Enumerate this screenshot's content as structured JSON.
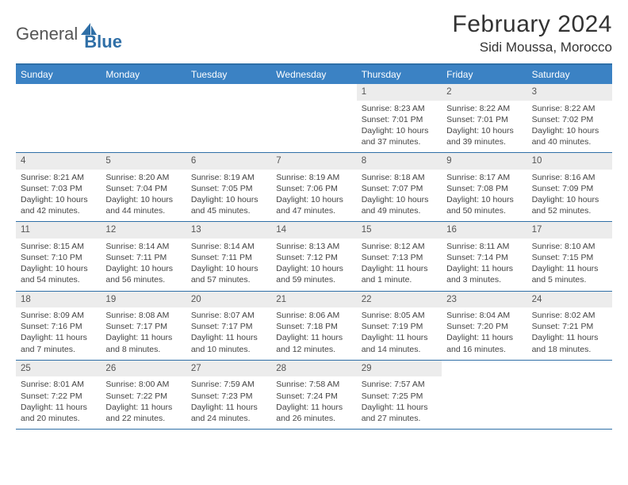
{
  "brand": {
    "general": "General",
    "blue": "Blue"
  },
  "colors": {
    "accent": "#3b82c4",
    "rule": "#2f6fa7",
    "dayrow_bg": "#ececec"
  },
  "title": {
    "month": "February 2024",
    "location": "Sidi Moussa, Morocco"
  },
  "weekdays": [
    "Sunday",
    "Monday",
    "Tuesday",
    "Wednesday",
    "Thursday",
    "Friday",
    "Saturday"
  ],
  "weeks": [
    [
      {
        "empty": true
      },
      {
        "empty": true
      },
      {
        "empty": true
      },
      {
        "empty": true
      },
      {
        "day": "1",
        "sunrise": "Sunrise: 8:23 AM",
        "sunset": "Sunset: 7:01 PM",
        "d1": "Daylight: 10 hours",
        "d2": "and 37 minutes."
      },
      {
        "day": "2",
        "sunrise": "Sunrise: 8:22 AM",
        "sunset": "Sunset: 7:01 PM",
        "d1": "Daylight: 10 hours",
        "d2": "and 39 minutes."
      },
      {
        "day": "3",
        "sunrise": "Sunrise: 8:22 AM",
        "sunset": "Sunset: 7:02 PM",
        "d1": "Daylight: 10 hours",
        "d2": "and 40 minutes."
      }
    ],
    [
      {
        "day": "4",
        "sunrise": "Sunrise: 8:21 AM",
        "sunset": "Sunset: 7:03 PM",
        "d1": "Daylight: 10 hours",
        "d2": "and 42 minutes."
      },
      {
        "day": "5",
        "sunrise": "Sunrise: 8:20 AM",
        "sunset": "Sunset: 7:04 PM",
        "d1": "Daylight: 10 hours",
        "d2": "and 44 minutes."
      },
      {
        "day": "6",
        "sunrise": "Sunrise: 8:19 AM",
        "sunset": "Sunset: 7:05 PM",
        "d1": "Daylight: 10 hours",
        "d2": "and 45 minutes."
      },
      {
        "day": "7",
        "sunrise": "Sunrise: 8:19 AM",
        "sunset": "Sunset: 7:06 PM",
        "d1": "Daylight: 10 hours",
        "d2": "and 47 minutes."
      },
      {
        "day": "8",
        "sunrise": "Sunrise: 8:18 AM",
        "sunset": "Sunset: 7:07 PM",
        "d1": "Daylight: 10 hours",
        "d2": "and 49 minutes."
      },
      {
        "day": "9",
        "sunrise": "Sunrise: 8:17 AM",
        "sunset": "Sunset: 7:08 PM",
        "d1": "Daylight: 10 hours",
        "d2": "and 50 minutes."
      },
      {
        "day": "10",
        "sunrise": "Sunrise: 8:16 AM",
        "sunset": "Sunset: 7:09 PM",
        "d1": "Daylight: 10 hours",
        "d2": "and 52 minutes."
      }
    ],
    [
      {
        "day": "11",
        "sunrise": "Sunrise: 8:15 AM",
        "sunset": "Sunset: 7:10 PM",
        "d1": "Daylight: 10 hours",
        "d2": "and 54 minutes."
      },
      {
        "day": "12",
        "sunrise": "Sunrise: 8:14 AM",
        "sunset": "Sunset: 7:11 PM",
        "d1": "Daylight: 10 hours",
        "d2": "and 56 minutes."
      },
      {
        "day": "13",
        "sunrise": "Sunrise: 8:14 AM",
        "sunset": "Sunset: 7:11 PM",
        "d1": "Daylight: 10 hours",
        "d2": "and 57 minutes."
      },
      {
        "day": "14",
        "sunrise": "Sunrise: 8:13 AM",
        "sunset": "Sunset: 7:12 PM",
        "d1": "Daylight: 10 hours",
        "d2": "and 59 minutes."
      },
      {
        "day": "15",
        "sunrise": "Sunrise: 8:12 AM",
        "sunset": "Sunset: 7:13 PM",
        "d1": "Daylight: 11 hours",
        "d2": "and 1 minute."
      },
      {
        "day": "16",
        "sunrise": "Sunrise: 8:11 AM",
        "sunset": "Sunset: 7:14 PM",
        "d1": "Daylight: 11 hours",
        "d2": "and 3 minutes."
      },
      {
        "day": "17",
        "sunrise": "Sunrise: 8:10 AM",
        "sunset": "Sunset: 7:15 PM",
        "d1": "Daylight: 11 hours",
        "d2": "and 5 minutes."
      }
    ],
    [
      {
        "day": "18",
        "sunrise": "Sunrise: 8:09 AM",
        "sunset": "Sunset: 7:16 PM",
        "d1": "Daylight: 11 hours",
        "d2": "and 7 minutes."
      },
      {
        "day": "19",
        "sunrise": "Sunrise: 8:08 AM",
        "sunset": "Sunset: 7:17 PM",
        "d1": "Daylight: 11 hours",
        "d2": "and 8 minutes."
      },
      {
        "day": "20",
        "sunrise": "Sunrise: 8:07 AM",
        "sunset": "Sunset: 7:17 PM",
        "d1": "Daylight: 11 hours",
        "d2": "and 10 minutes."
      },
      {
        "day": "21",
        "sunrise": "Sunrise: 8:06 AM",
        "sunset": "Sunset: 7:18 PM",
        "d1": "Daylight: 11 hours",
        "d2": "and 12 minutes."
      },
      {
        "day": "22",
        "sunrise": "Sunrise: 8:05 AM",
        "sunset": "Sunset: 7:19 PM",
        "d1": "Daylight: 11 hours",
        "d2": "and 14 minutes."
      },
      {
        "day": "23",
        "sunrise": "Sunrise: 8:04 AM",
        "sunset": "Sunset: 7:20 PM",
        "d1": "Daylight: 11 hours",
        "d2": "and 16 minutes."
      },
      {
        "day": "24",
        "sunrise": "Sunrise: 8:02 AM",
        "sunset": "Sunset: 7:21 PM",
        "d1": "Daylight: 11 hours",
        "d2": "and 18 minutes."
      }
    ],
    [
      {
        "day": "25",
        "sunrise": "Sunrise: 8:01 AM",
        "sunset": "Sunset: 7:22 PM",
        "d1": "Daylight: 11 hours",
        "d2": "and 20 minutes."
      },
      {
        "day": "26",
        "sunrise": "Sunrise: 8:00 AM",
        "sunset": "Sunset: 7:22 PM",
        "d1": "Daylight: 11 hours",
        "d2": "and 22 minutes."
      },
      {
        "day": "27",
        "sunrise": "Sunrise: 7:59 AM",
        "sunset": "Sunset: 7:23 PM",
        "d1": "Daylight: 11 hours",
        "d2": "and 24 minutes."
      },
      {
        "day": "28",
        "sunrise": "Sunrise: 7:58 AM",
        "sunset": "Sunset: 7:24 PM",
        "d1": "Daylight: 11 hours",
        "d2": "and 26 minutes."
      },
      {
        "day": "29",
        "sunrise": "Sunrise: 7:57 AM",
        "sunset": "Sunset: 7:25 PM",
        "d1": "Daylight: 11 hours",
        "d2": "and 27 minutes."
      },
      {
        "empty": true
      },
      {
        "empty": true
      }
    ]
  ]
}
